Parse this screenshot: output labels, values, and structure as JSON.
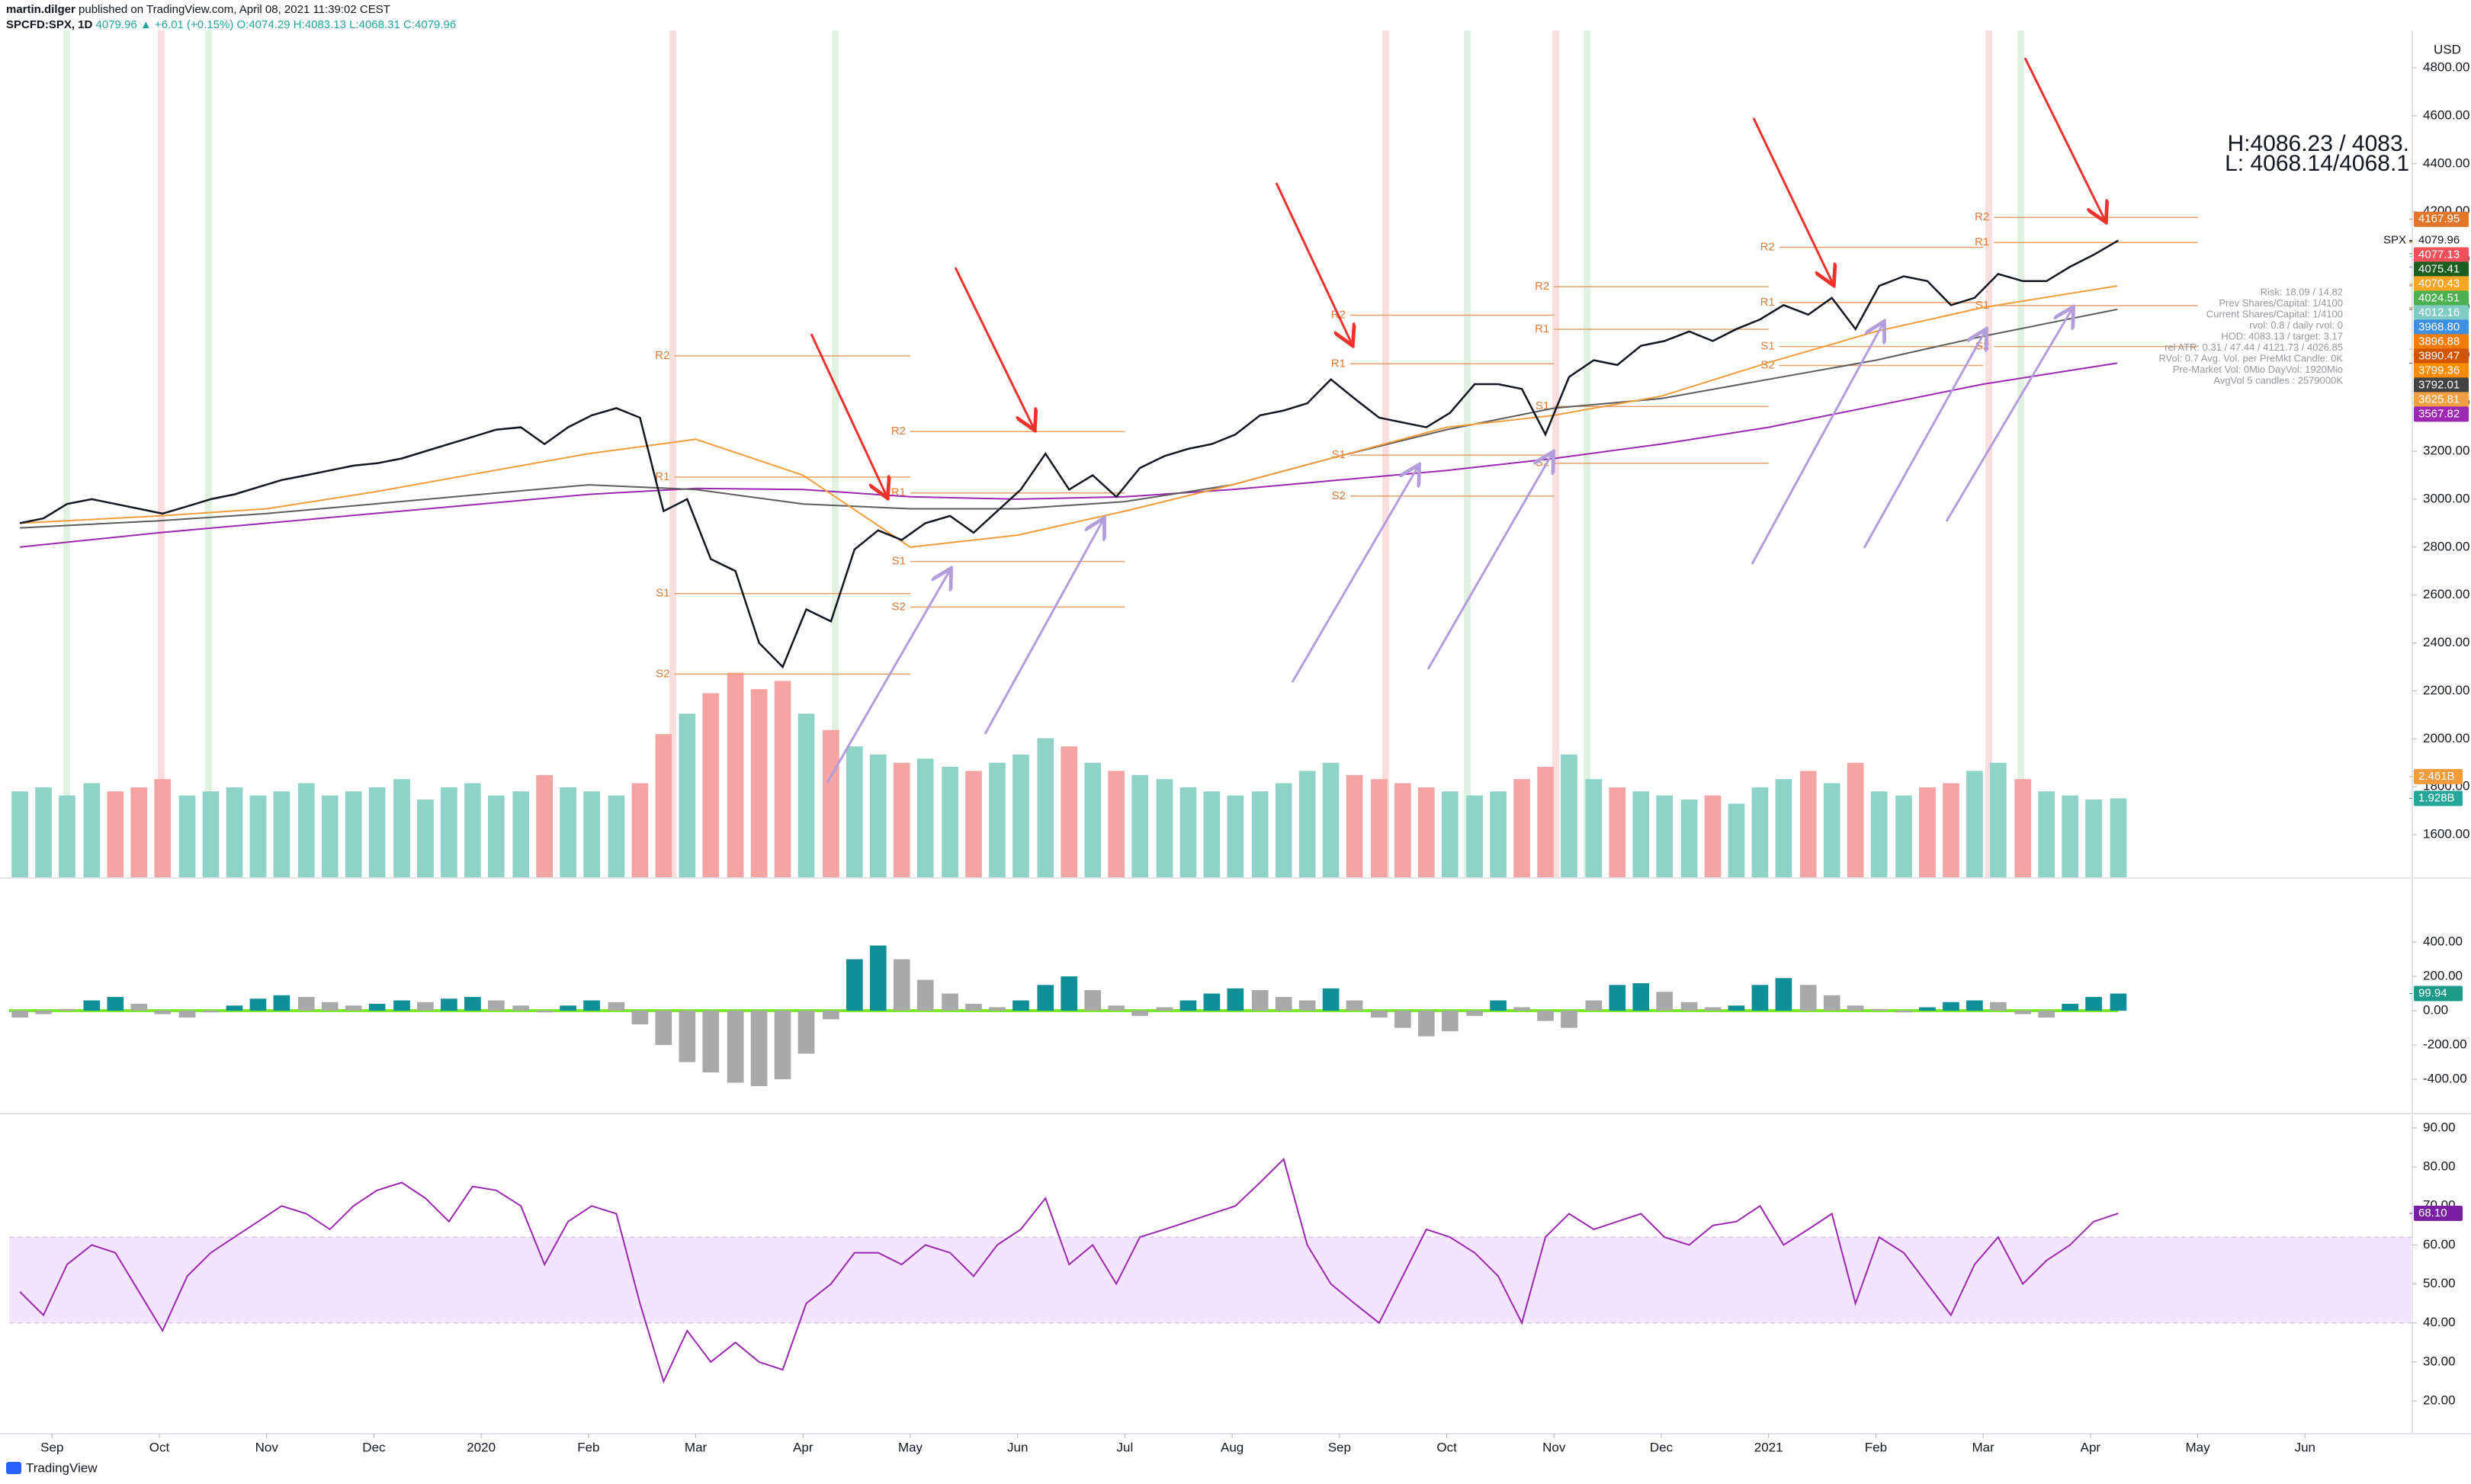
{
  "header": {
    "author": "martin.dilger",
    "published": "published on TradingView.com, April 08, 2021 11:39:02 CEST",
    "symbol": "SPCFD:SPX, 1D",
    "quote": "4079.96 ▲ +6.01 (+0.15%) O:4074.29 H:4083.13 L:4068.31 C:4079.96",
    "currency": "USD",
    "brand": "TradingView"
  },
  "chart_data": [
    {
      "type": "line",
      "xlim": [
        -0.4,
        22.0
      ],
      "xticks": [
        {
          "value": 0,
          "label": "Sep"
        },
        {
          "value": 1,
          "label": "Oct"
        },
        {
          "value": 2,
          "label": "Nov"
        },
        {
          "value": 3,
          "label": "Dec"
        },
        {
          "value": 4,
          "label": "2020"
        },
        {
          "value": 5,
          "label": "Feb"
        },
        {
          "value": 6,
          "label": "Mar"
        },
        {
          "value": 7,
          "label": "Apr"
        },
        {
          "value": 8,
          "label": "May"
        },
        {
          "value": 9,
          "label": "Jun"
        },
        {
          "value": 10,
          "label": "Jul"
        },
        {
          "value": 11,
          "label": "Aug"
        },
        {
          "value": 12,
          "label": "Sep"
        },
        {
          "value": 13,
          "label": "Oct"
        },
        {
          "value": 14,
          "label": "Nov"
        },
        {
          "value": 15,
          "label": "Dec"
        },
        {
          "value": 16,
          "label": "2021"
        },
        {
          "value": 17,
          "label": "Feb"
        },
        {
          "value": 18,
          "label": "Mar"
        },
        {
          "value": 19,
          "label": "Apr"
        },
        {
          "value": 20,
          "label": "May"
        },
        {
          "value": 21,
          "label": "Jun"
        }
      ],
      "ylim": [
        1422,
        4956
      ],
      "yticks": [
        {
          "value": 1600,
          "label": "1600.00"
        },
        {
          "value": 1800,
          "label": "1800.00"
        },
        {
          "value": 2000,
          "label": "2000.00"
        },
        {
          "value": 2200,
          "label": "2200.00"
        },
        {
          "value": 2400,
          "label": "2400.00"
        },
        {
          "value": 2600,
          "label": "2600.00"
        },
        {
          "value": 2800,
          "label": "2800.00"
        },
        {
          "value": 3000,
          "label": "3000.00"
        },
        {
          "value": 3200,
          "label": "3200.00"
        },
        {
          "value": 3400,
          "label": "3400.00"
        },
        {
          "value": 3600,
          "label": "3600.00"
        },
        {
          "value": 3800,
          "label": "3800.00"
        },
        {
          "value": 4000,
          "label": "4000.00"
        },
        {
          "value": 4200,
          "label": "4200.00"
        },
        {
          "value": 4400,
          "label": "4400.00"
        },
        {
          "value": 4600,
          "label": "4600.00"
        },
        {
          "value": 4800,
          "label": "4800.00"
        }
      ],
      "y2lim": [
        0,
        20.7
      ],
      "x": [
        -0.3,
        -0.08,
        0.14,
        0.37,
        0.59,
        0.81,
        1.03,
        1.26,
        1.48,
        1.7,
        1.92,
        2.14,
        2.37,
        2.59,
        2.81,
        3.03,
        3.26,
        3.48,
        3.7,
        3.92,
        4.14,
        4.37,
        4.59,
        4.81,
        5.03,
        5.26,
        5.48,
        5.7,
        5.92,
        6.14,
        6.37,
        6.59,
        6.81,
        7.03,
        7.26,
        7.48,
        7.7,
        7.92,
        8.14,
        8.37,
        8.59,
        8.81,
        9.03,
        9.26,
        9.48,
        9.7,
        9.92,
        10.14,
        10.37,
        10.59,
        10.81,
        11.03,
        11.26,
        11.48,
        11.7,
        11.92,
        12.14,
        12.37,
        12.59,
        12.81,
        13.03,
        13.26,
        13.48,
        13.7,
        13.92,
        14.14,
        14.37,
        14.59,
        14.81,
        15.03,
        15.26,
        15.48,
        15.7,
        15.92,
        16.14,
        16.37,
        16.59,
        16.81,
        17.03,
        17.26,
        17.48,
        17.7,
        17.92,
        18.14,
        18.37,
        18.59,
        18.81,
        19.03,
        19.26
      ],
      "series": [
        {
          "color": "#9c27b0",
          "x": [
            -0.3,
            1,
            2,
            3,
            4,
            5,
            6,
            7,
            8,
            9,
            10,
            11,
            12,
            13,
            14,
            15,
            16,
            17,
            18,
            19.25
          ],
          "values": [
            2800,
            2860,
            2900,
            2940,
            2980,
            3020,
            3045,
            3040,
            3010,
            3000,
            3010,
            3040,
            3080,
            3120,
            3170,
            3230,
            3300,
            3390,
            3480,
            3568
          ]
        },
        {
          "color": "#5d5d5d",
          "x": [
            -0.3,
            1,
            2,
            3,
            4,
            5,
            6,
            7,
            8,
            9,
            10,
            11,
            12,
            13,
            14,
            15,
            16,
            17,
            18,
            19.25
          ],
          "values": [
            2880,
            2910,
            2940,
            2980,
            3020,
            3060,
            3040,
            2980,
            2960,
            2960,
            2990,
            3060,
            3180,
            3290,
            3380,
            3420,
            3500,
            3580,
            3680,
            3792
          ]
        },
        {
          "color": "#f39c3c",
          "x": [
            -0.3,
            1,
            2,
            3,
            4,
            5,
            6,
            7,
            8,
            9,
            10,
            11,
            12,
            13,
            14,
            15,
            16,
            17,
            18,
            19.25
          ],
          "values": [
            2900,
            2930,
            2960,
            3030,
            3110,
            3190,
            3250,
            3100,
            2800,
            2850,
            2950,
            3060,
            3180,
            3300,
            3350,
            3430,
            3570,
            3700,
            3800,
            3890
          ]
        },
        {
          "color": "#131722",
          "values": [
            2900,
            2920,
            2980,
            3000,
            2980,
            2960,
            2940,
            2970,
            3000,
            3020,
            3050,
            3080,
            3100,
            3120,
            3140,
            3150,
            3170,
            3200,
            3230,
            3260,
            3290,
            3300,
            3230,
            3300,
            3350,
            3380,
            3340,
            2950,
            3000,
            2750,
            2700,
            2400,
            2300,
            2540,
            2490,
            2790,
            2870,
            2830,
            2900,
            2930,
            2860,
            2950,
            3040,
            3190,
            3040,
            3100,
            3010,
            3130,
            3180,
            3210,
            3230,
            3270,
            3350,
            3370,
            3400,
            3500,
            3420,
            3340,
            3320,
            3300,
            3360,
            3480,
            3480,
            3460,
            3270,
            3510,
            3580,
            3560,
            3640,
            3660,
            3700,
            3660,
            3710,
            3750,
            3810,
            3770,
            3840,
            3710,
            3890,
            3930,
            3910,
            3810,
            3840,
            3940,
            3910,
            3910,
            3970,
            4020,
            4080
          ]
        },
        {
          "axis": "y2",
          "color": "#8fd3c8",
          "down_color": "#f5a3a3",
          "values": [
            2.1,
            2.2,
            2.0,
            2.3,
            2.1,
            2.2,
            2.4,
            2.0,
            2.1,
            2.2,
            2.0,
            2.1,
            2.3,
            2.0,
            2.1,
            2.2,
            2.4,
            1.9,
            2.2,
            2.3,
            2.0,
            2.1,
            2.5,
            2.2,
            2.1,
            2.0,
            2.3,
            3.5,
            4.0,
            4.5,
            5.0,
            4.6,
            4.8,
            4.0,
            3.6,
            3.2,
            3.0,
            2.8,
            2.9,
            2.7,
            2.6,
            2.8,
            3.0,
            3.4,
            3.2,
            2.8,
            2.6,
            2.5,
            2.4,
            2.2,
            2.1,
            2.0,
            2.1,
            2.3,
            2.6,
            2.8,
            2.5,
            2.4,
            2.3,
            2.2,
            2.1,
            2.0,
            2.1,
            2.4,
            2.7,
            3.0,
            2.4,
            2.2,
            2.1,
            2.0,
            1.9,
            2.0,
            1.8,
            2.2,
            2.4,
            2.6,
            2.3,
            2.8,
            2.1,
            2.0,
            2.2,
            2.3,
            2.6,
            2.8,
            2.4,
            2.1,
            2.0,
            1.9,
            1.93
          ]
        }
      ],
      "pivots": [
        {
          "label": "R2",
          "value": 3598,
          "x": [
            5.8,
            8.0
          ]
        },
        {
          "label": "R1",
          "value": 3092,
          "x": [
            5.8,
            8.0
          ]
        },
        {
          "label": "S1",
          "value": 2606,
          "x": [
            5.8,
            8.0
          ]
        },
        {
          "label": "S2",
          "value": 2270,
          "x": [
            5.8,
            8.0
          ]
        },
        {
          "label": "R2",
          "value": 3282,
          "x": [
            8.0,
            10.0
          ]
        },
        {
          "label": "R1",
          "value": 3026,
          "x": [
            8.0,
            10.0
          ]
        },
        {
          "label": "S1",
          "value": 2740,
          "x": [
            8.0,
            10.0
          ]
        },
        {
          "label": "S2",
          "value": 2550,
          "x": [
            8.0,
            10.0
          ]
        },
        {
          "label": "R2",
          "value": 3768,
          "x": [
            12.1,
            14.0
          ]
        },
        {
          "label": "R1",
          "value": 3565,
          "x": [
            12.1,
            14.0
          ]
        },
        {
          "label": "S1",
          "value": 3184,
          "x": [
            12.1,
            14.0
          ]
        },
        {
          "label": "S2",
          "value": 3013,
          "x": [
            12.1,
            14.0
          ]
        },
        {
          "label": "R2",
          "value": 3887,
          "x": [
            14.0,
            16.0
          ]
        },
        {
          "label": "R1",
          "value": 3709,
          "x": [
            14.0,
            16.0
          ]
        },
        {
          "label": "S1",
          "value": 3387,
          "x": [
            14.0,
            16.0
          ]
        },
        {
          "label": "S2",
          "value": 3150,
          "x": [
            14.0,
            16.0
          ]
        },
        {
          "label": "R2",
          "value": 4051,
          "x": [
            16.1,
            18.0
          ]
        },
        {
          "label": "R1",
          "value": 3821,
          "x": [
            16.1,
            18.0
          ]
        },
        {
          "label": "S1",
          "value": 3637,
          "x": [
            16.1,
            18.0
          ]
        },
        {
          "label": "S2",
          "value": 3558,
          "x": [
            16.1,
            18.0
          ]
        },
        {
          "label": "R2",
          "value": 4176,
          "x": [
            18.1,
            20.0
          ]
        },
        {
          "label": "R1",
          "value": 4071,
          "x": [
            18.1,
            20.0
          ]
        },
        {
          "label": "S1",
          "value": 3808,
          "x": [
            18.1,
            20.0
          ]
        },
        {
          "label": "S2",
          "value": 3637,
          "x": [
            18.1,
            20.0
          ]
        }
      ],
      "badges": [
        {
          "value": 4167.95,
          "label": "4167.95",
          "color": "#e0762b"
        },
        {
          "name": "SPX",
          "value": 4079.96,
          "label": "4079.96"
        },
        {
          "value": 4077.13,
          "label": "4077.13",
          "color": "#f0505a"
        },
        {
          "value": 4075.41,
          "label": "4075.41",
          "color": "#1b5e20"
        },
        {
          "value": 4070.43,
          "label": "4070.43",
          "color": "#f5a623"
        },
        {
          "value": 4024.51,
          "label": "4024.51",
          "color": "#4caf50"
        },
        {
          "value": 4012.16,
          "label": "4012.16",
          "color": "#80cbc4"
        },
        {
          "value": 3968.8,
          "label": "3968.80",
          "color": "#3d8fe0"
        },
        {
          "value": 3896.88,
          "label": "3896.88",
          "color": "#f57c00"
        },
        {
          "value": 3890.47,
          "label": "3890.47",
          "color": "#d35400"
        },
        {
          "value": 3799.36,
          "label": "3799.36",
          "color": "#fb8c00"
        },
        {
          "value": 3792.01,
          "label": "3792.01",
          "color": "#424242"
        },
        {
          "value": 3625.81,
          "label": "3625.81",
          "color": "#f0a040"
        },
        {
          "value": 3567.82,
          "label": "3567.82",
          "color": "#9c27b0"
        }
      ],
      "y2badges": [
        {
          "value": 2.461,
          "label": "2.461B",
          "color": "#f39c3c"
        },
        {
          "value": 1.928,
          "label": "1.928B",
          "color": "#26a69a"
        }
      ],
      "annotations": {
        "hl": [
          "H:4086.23 / 4083.",
          "L: 4068.14/4068.1"
        ],
        "info": [
          "Risk: 18.09 / 14.82",
          "Prev Shares/Capital: 1/4100",
          "Current Shares/Capital: 1/4100",
          "rvol: 0.8 / daily rvol: 0",
          "HOD: 4083.13 / target: 3.17",
          "rel ATR: 0.31 / 47.44 / 4121.73 / 4026.85",
          "RVol: 0.7 Avg. Vol. per PreMkt Candle: 0K",
          "Pre-Market Vol: 0Mio DayVol: 1920Mio",
          "AvgVol 5 candles : 2579000K"
        ]
      }
    },
    {
      "type": "bar",
      "ylim": [
        -591,
        769
      ],
      "yticks": [
        {
          "value": -400,
          "label": "-400.00"
        },
        {
          "value": -200,
          "label": "-200.00"
        },
        {
          "value": 0,
          "label": "0.00"
        },
        {
          "value": 200,
          "label": "200.00"
        },
        {
          "value": 400,
          "label": "400.00"
        }
      ],
      "color": "#0f8f97",
      "fall_color": "#a9a9a9",
      "zero_color": "#7be82a",
      "values": [
        -40,
        -20,
        10,
        60,
        80,
        40,
        -20,
        -40,
        -10,
        30,
        70,
        90,
        80,
        50,
        30,
        40,
        60,
        50,
        70,
        80,
        60,
        30,
        -10,
        30,
        60,
        50,
        -80,
        -200,
        -300,
        -360,
        -420,
        -440,
        -400,
        -250,
        -50,
        300,
        380,
        300,
        180,
        100,
        40,
        20,
        60,
        150,
        200,
        120,
        30,
        -30,
        20,
        60,
        100,
        130,
        120,
        80,
        60,
        130,
        60,
        -40,
        -100,
        -150,
        -120,
        -30,
        60,
        20,
        -60,
        -100,
        60,
        150,
        160,
        110,
        50,
        20,
        30,
        150,
        190,
        150,
        90,
        30,
        10,
        -10,
        20,
        50,
        60,
        50,
        -20,
        -40,
        40,
        80,
        99.94
      ],
      "badge": {
        "value": 99.94,
        "label": "99.94",
        "color": "#1e9a8a"
      }
    },
    {
      "type": "line",
      "ylim": [
        11.8,
        93.3
      ],
      "yticks": [
        {
          "value": 20,
          "label": "20.00"
        },
        {
          "value": 30,
          "label": "30.00"
        },
        {
          "value": 40,
          "label": "40.00"
        },
        {
          "value": 50,
          "label": "50.00"
        },
        {
          "value": 60,
          "label": "60.00"
        },
        {
          "value": 70,
          "label": "70.00"
        },
        {
          "value": 80,
          "label": "80.00"
        },
        {
          "value": 90,
          "label": "90.00"
        }
      ],
      "band": [
        40,
        62
      ],
      "color": "#9c27b0",
      "values": [
        48,
        42,
        55,
        60,
        58,
        48,
        38,
        52,
        58,
        62,
        66,
        70,
        68,
        64,
        70,
        74,
        76,
        72,
        66,
        75,
        74,
        70,
        55,
        66,
        70,
        68,
        45,
        25,
        38,
        30,
        35,
        30,
        28,
        45,
        50,
        58,
        58,
        55,
        60,
        58,
        52,
        60,
        64,
        72,
        55,
        60,
        50,
        62,
        64,
        66,
        68,
        70,
        76,
        82,
        60,
        50,
        45,
        40,
        52,
        64,
        62,
        58,
        52,
        40,
        62,
        68,
        64,
        66,
        68,
        62,
        60,
        65,
        66,
        70,
        60,
        64,
        68,
        45,
        62,
        58,
        50,
        42,
        55,
        62,
        50,
        56,
        60,
        66,
        68.1
      ],
      "badge": {
        "value": 68.1,
        "label": "68.10",
        "color": "#7b1fa2"
      }
    }
  ]
}
